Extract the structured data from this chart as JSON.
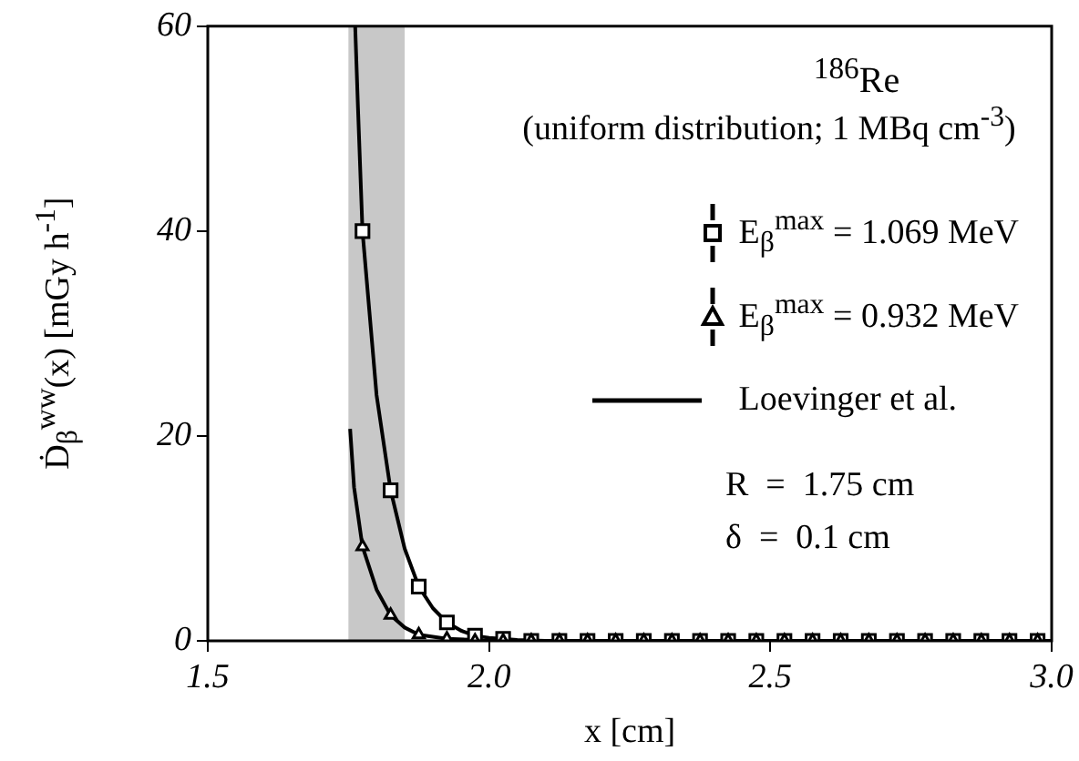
{
  "chart_data": {
    "type": "scatter",
    "xlabel": "x [cm]",
    "ylabel": "Ḋ$_{β}$$^{ww}$(x) [mGy h$^{-1}$]",
    "annotations": [
      "$^{186}$Re",
      "(uniform distribution; 1 MBq cm$^{-3}$)",
      "R  =  1.75 cm",
      "δ  =  0.1 cm"
    ],
    "series": [
      {
        "name": "E$_{β}$$^{max}$ = 1.069 MeV",
        "type": "scatter",
        "marker": "square",
        "color": "#000000",
        "x": [
          1.775,
          1.825,
          1.875,
          1.925,
          1.975,
          2.025,
          2.075,
          2.125,
          2.175,
          2.225,
          2.275,
          2.325,
          2.375,
          2.425,
          2.475,
          2.525,
          2.575,
          2.625,
          2.675,
          2.725,
          2.775,
          2.825,
          2.875,
          2.925,
          2.975
        ],
        "values": [
          40,
          14.7,
          5.3,
          1.8,
          0.5,
          0.2,
          0,
          0,
          0,
          0,
          0,
          0,
          0,
          0,
          0,
          0,
          0,
          0,
          0,
          0,
          0,
          0,
          0,
          0,
          0
        ]
      },
      {
        "name": "E$_{β}$$^{max}$ = 0.932 MeV",
        "type": "scatter",
        "marker": "triangle",
        "color": "#000000",
        "x": [
          1.775,
          1.825,
          1.875,
          1.925,
          1.975,
          2.025,
          2.075,
          2.125,
          2.175,
          2.225,
          2.275,
          2.325,
          2.375,
          2.425,
          2.475,
          2.525,
          2.575,
          2.625,
          2.675,
          2.725,
          2.775,
          2.825,
          2.875,
          2.925,
          2.975
        ],
        "values": [
          9.2,
          2.5,
          0.6,
          0.2,
          0,
          0,
          0,
          0,
          0,
          0,
          0,
          0,
          0,
          0,
          0,
          0,
          0,
          0,
          0,
          0,
          0,
          0,
          0,
          0,
          0
        ]
      },
      {
        "name": "Loevinger et al.",
        "type": "line",
        "marker": "none",
        "line_style": "solid",
        "color": "#000000",
        "x": [
          1.762,
          1.767,
          1.775,
          1.8,
          1.825,
          1.85,
          1.875,
          1.9,
          1.925,
          1.95,
          1.975,
          2.0,
          2.05,
          2.1,
          3.0
        ],
        "values": [
          60,
          52,
          40,
          24,
          14.7,
          9,
          5.3,
          3.2,
          1.8,
          1,
          0.5,
          0.3,
          0.1,
          0,
          0
        ]
      },
      {
        "type": "line",
        "marker": "none",
        "line_style": "solid",
        "color": "#000000",
        "x": [
          1.753,
          1.76,
          1.775,
          1.8,
          1.825,
          1.85,
          1.875,
          1.9,
          1.925,
          1.975,
          2.0,
          3.0
        ],
        "values": [
          20.7,
          15,
          9.2,
          5,
          2.5,
          1.3,
          0.6,
          0.4,
          0.2,
          0.1,
          0,
          0
        ]
      }
    ],
    "bands": [
      {
        "axis": "x",
        "from": 1.75,
        "to": 1.85,
        "color": "#c8c8c8"
      }
    ],
    "xlim": [
      1.5,
      3.0
    ],
    "xticks": [
      1.5,
      {
        "value": 2,
        "label": "2.0"
      },
      2.5,
      {
        "value": 3,
        "label": "3.0"
      }
    ],
    "ylim": [
      0,
      60
    ],
    "yticks": [
      0,
      20,
      40,
      60
    ],
    "grid": false,
    "legend": "right"
  }
}
